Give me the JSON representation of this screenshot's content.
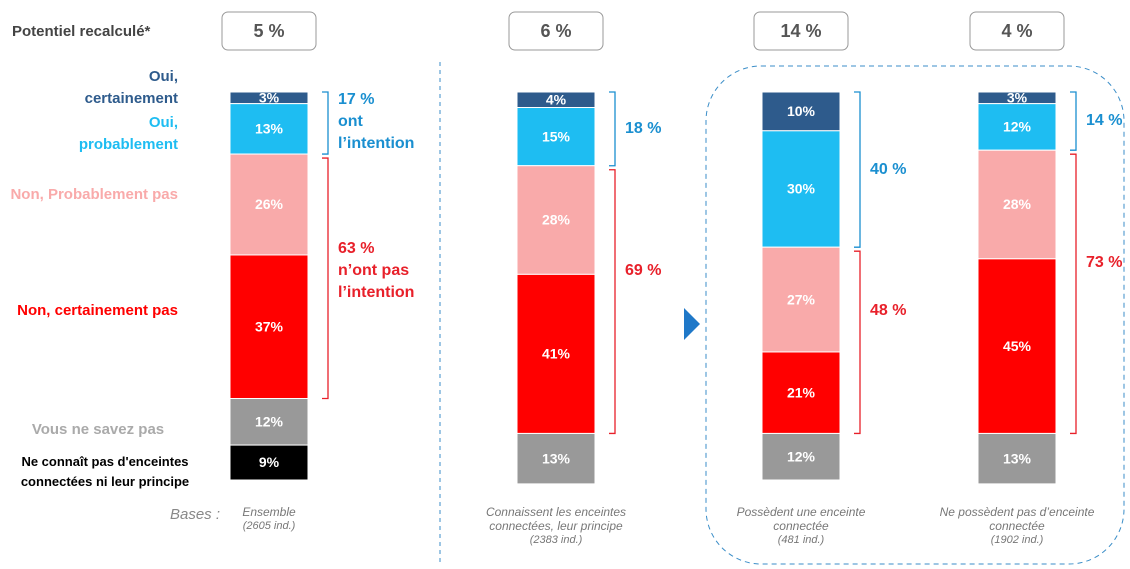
{
  "chart_data": {
    "type": "bar",
    "stacked": true,
    "title": "Potentiel recalculé*",
    "categories": [
      "Ensemble",
      "Connaissent les enceintes connectées, leur principe",
      "Possèdent une enceinte connectée",
      "Ne possèdent pas d’enceinte connectée"
    ],
    "bases": [
      "(2605 ind.)",
      "(2383 ind.)",
      "(481 ind.)",
      "(1902 ind.)"
    ],
    "bases_label": "Bases :",
    "potential": [
      5,
      6,
      14,
      4
    ],
    "potential_labels": [
      "5 %",
      "6 %",
      "14 %",
      "4 %"
    ],
    "intention": [
      17,
      18,
      40,
      14
    ],
    "intention_labels": [
      "17 %",
      "18 %",
      "40 %",
      "14 %"
    ],
    "intention_text": "ont l’intention",
    "no_intention": [
      63,
      69,
      48,
      73
    ],
    "no_intention_labels": [
      "63 %",
      "69 %",
      "48 %",
      "73 %"
    ],
    "no_intention_text": "n’ont pas l’intention",
    "series": [
      {
        "name": "Oui, certainement",
        "color": "#2e5b8c",
        "values": [
          3,
          4,
          10,
          3
        ],
        "value_labels": [
          "3%",
          "4%",
          "10%",
          "3%"
        ]
      },
      {
        "name": "Oui, probablement",
        "color": "#1ebdf2",
        "values": [
          13,
          15,
          30,
          12
        ],
        "value_labels": [
          "13%",
          "15%",
          "30%",
          "12%"
        ]
      },
      {
        "name": "Non, Probablement pas",
        "color": "#f9aaaa",
        "values": [
          26,
          28,
          27,
          28
        ],
        "value_labels": [
          "26%",
          "28%",
          "27%",
          "28%"
        ]
      },
      {
        "name": "Non, certainement pas",
        "color": "#ff0000",
        "values": [
          37,
          41,
          21,
          45
        ],
        "value_labels": [
          "37%",
          "41%",
          "21%",
          "45%"
        ]
      },
      {
        "name": "Vous ne savez pas",
        "color": "#999999",
        "values": [
          12,
          13,
          12,
          13
        ],
        "value_labels": [
          "12%",
          "13%",
          "12%",
          "13%"
        ]
      },
      {
        "name": "Ne connaît pas d'enceintes connectées ni leur principe",
        "color": "#000000",
        "values": [
          9,
          null,
          null,
          null
        ],
        "value_labels": [
          "9%",
          null,
          null,
          null
        ]
      }
    ]
  }
}
